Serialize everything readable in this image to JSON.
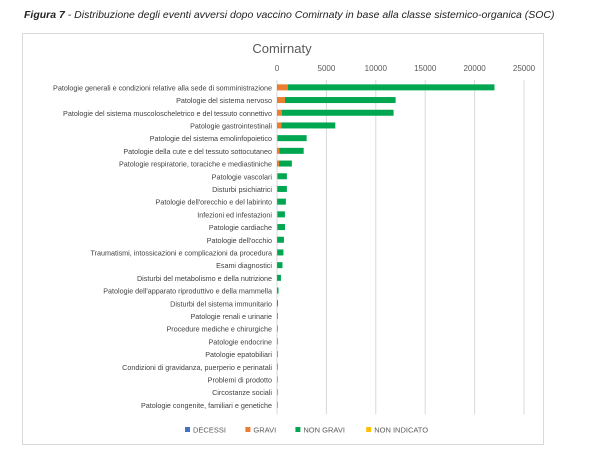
{
  "caption": {
    "label": "Figura 7",
    "text": " - Distribuzione degli eventi avversi dopo vaccino Comirnaty in base alla classe sistemico-organica (SOC)"
  },
  "chart_data": {
    "type": "bar",
    "orientation": "horizontal",
    "stacked": true,
    "title": "Comirnaty",
    "xlabel": "",
    "ylabel": "",
    "xlim": [
      0,
      25000
    ],
    "xticks": [
      0,
      5000,
      10000,
      15000,
      20000,
      25000
    ],
    "grid": true,
    "legend_position": "bottom",
    "categories": [
      "Patologie generali e condizioni relative alla sede di somministrazione",
      "Patologie del sistema nervoso",
      "Patologie del sistema muscoloscheletrico e del tessuto connettivo",
      "Patologie gastrointestinali",
      "Patologie del sistema emolinfopoietico",
      "Patologie della cute e del tessuto sottocutaneo",
      "Patologie respiratorie, toraciche e mediastiniche",
      "Patologie vascolari",
      "Disturbi psichiatrici",
      "Patologie dell'orecchio e del labirinto",
      "Infezioni ed infestazioni",
      "Patologie cardiache",
      "Patologie dell'occhio",
      "Traumatismi, intossicazioni e complicazioni da procedura",
      "Esami diagnostici",
      "Disturbi del metabolismo e della nutrizione",
      "Patologie dell'apparato riproduttivo e della mammella",
      "Disturbi del sistema immunitario",
      "Patologie renali e urinarie",
      "Procedure mediche e chirurgiche",
      "Patologie endocrine",
      "Patologie epatobiliari",
      "Condizioni di gravidanza, puerperio e perinatali",
      "Problemi di prodotto",
      "Circostanze sociali",
      "Patologie congenite, familiari e genetiche"
    ],
    "series": [
      {
        "name": "DECESSI",
        "color": "#4472c4",
        "values": [
          10,
          5,
          0,
          0,
          0,
          0,
          5,
          0,
          0,
          0,
          0,
          5,
          0,
          0,
          0,
          0,
          0,
          0,
          0,
          0,
          0,
          0,
          0,
          0,
          0,
          0
        ]
      },
      {
        "name": "GRAVI",
        "color": "#ed7d31",
        "values": [
          1100,
          800,
          500,
          450,
          100,
          250,
          200,
          80,
          60,
          40,
          100,
          100,
          40,
          50,
          30,
          20,
          10,
          10,
          10,
          5,
          5,
          5,
          5,
          0,
          0,
          0
        ]
      },
      {
        "name": "NON GRAVI",
        "color": "#00a650",
        "values": [
          20900,
          11200,
          11300,
          5450,
          2900,
          2450,
          1300,
          920,
          940,
          860,
          700,
          700,
          660,
          600,
          520,
          380,
          140,
          90,
          40,
          20,
          20,
          15,
          10,
          10,
          5,
          5
        ]
      },
      {
        "name": "NON INDICATO",
        "color": "#ffc000",
        "values": [
          0,
          0,
          0,
          0,
          0,
          0,
          0,
          0,
          0,
          0,
          0,
          0,
          0,
          0,
          0,
          0,
          0,
          0,
          0,
          0,
          0,
          0,
          0,
          0,
          0,
          0
        ]
      }
    ]
  }
}
